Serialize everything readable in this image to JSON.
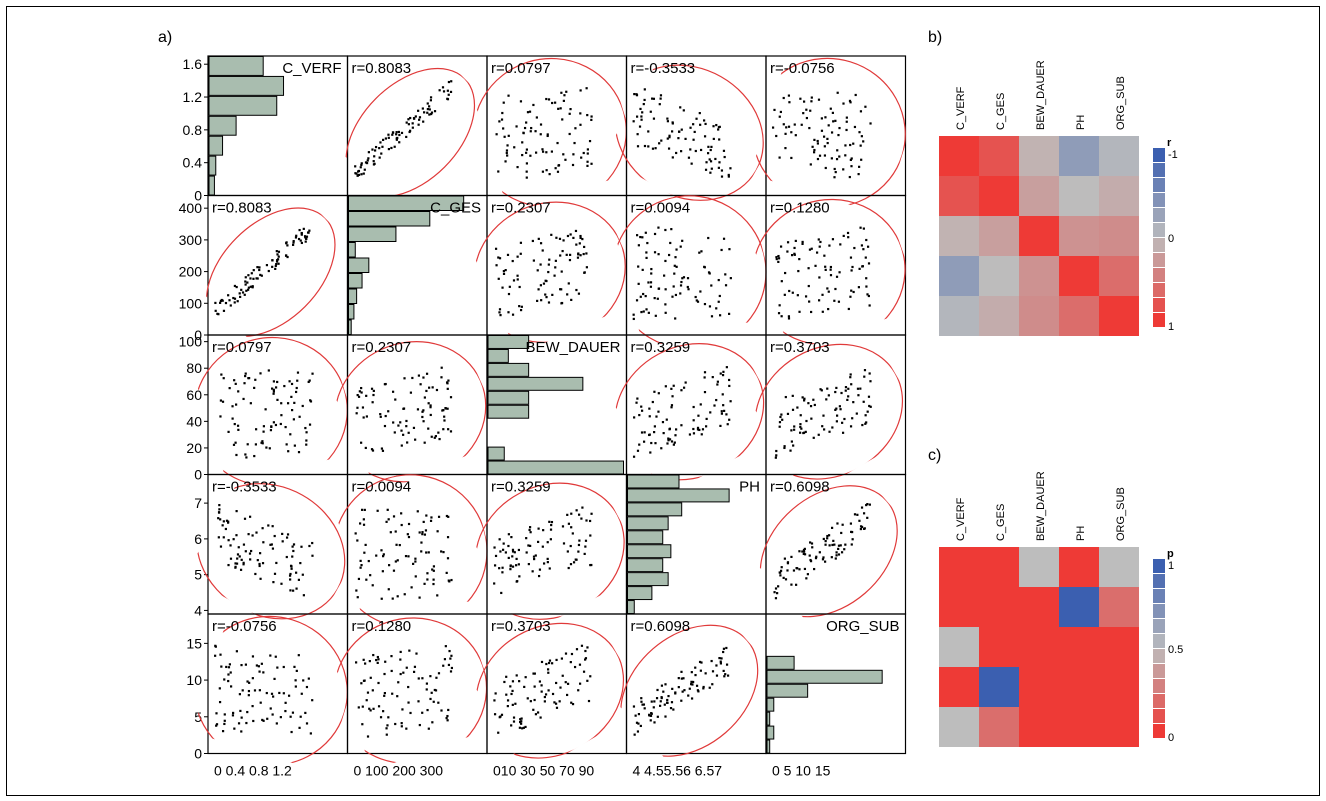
{
  "panel_labels": {
    "a": "a)",
    "b": "b)",
    "c": "c)"
  },
  "chart_data": [
    {
      "type": "scatter",
      "panel": "a)",
      "variables": [
        "C_VERF",
        "C_GES",
        "BEW_DAUER",
        "PH",
        "ORG_SUB"
      ],
      "correlation_labels": [
        [
          null,
          "r=0.8083",
          "r=0.0797",
          "r=-0.3533",
          "r=-0.0756"
        ],
        [
          "r=0.8083",
          null,
          "r=0.2307",
          "r=0.0094",
          "r=0.1280"
        ],
        [
          "r=0.0797",
          "r=0.2307",
          null,
          "r=0.3259",
          "r=0.3703"
        ],
        [
          "r=-0.3533",
          "r=0.0094",
          "r=0.3259",
          null,
          "r=0.6098"
        ],
        [
          "r=-0.0756",
          "r=0.1280",
          "r=0.3703",
          "r=0.6098",
          null
        ]
      ],
      "correlation_values": [
        [
          1,
          0.8083,
          0.0797,
          -0.3533,
          -0.0756
        ],
        [
          0.8083,
          1,
          0.2307,
          0.0094,
          0.128
        ],
        [
          0.0797,
          0.2307,
          1,
          0.3259,
          0.3703
        ],
        [
          -0.3533,
          0.0094,
          0.3259,
          1,
          0.6098
        ],
        [
          -0.0756,
          0.128,
          0.3703,
          0.6098,
          1
        ]
      ],
      "ranges": [
        [
          0,
          1.7
        ],
        [
          0,
          440
        ],
        [
          0,
          105
        ],
        [
          3.9,
          7.8
        ],
        [
          0,
          19
        ]
      ],
      "y_ticks": [
        [
          "0",
          "0.4",
          "0.8",
          "1.2",
          "1.6"
        ],
        [
          "0",
          "100",
          "200",
          "300",
          "400"
        ],
        [
          "0",
          "20",
          "40",
          "60",
          "80",
          "100"
        ],
        [
          "4",
          "5",
          "6",
          "7"
        ],
        [
          "0",
          "5",
          "10",
          "15"
        ]
      ],
      "x_ticks": [
        [
          "0",
          "0.4",
          "0.8",
          "1.2"
        ],
        [
          "0",
          "100",
          "200",
          "300"
        ],
        [
          "0",
          "10",
          "30",
          "50",
          "70",
          "90"
        ],
        [
          "4",
          "4.5",
          "5.5",
          "6",
          "6.5",
          "7"
        ],
        [
          "0",
          "5",
          "10",
          "15"
        ]
      ],
      "x_ticks_text": [
        "0 0.4 0.8 1.2",
        "0 100 200 300",
        "010 30 50 70 90",
        "4 4.55.56 6.57",
        "0 5 10 15"
      ],
      "histograms": [
        [
          0.04,
          0.05,
          0.1,
          0.2,
          0.5,
          0.55,
          0.4
        ],
        [
          0.02,
          0.04,
          0.06,
          0.1,
          0.15,
          0.05,
          0.35,
          0.6,
          0.85
        ],
        [
          1.0,
          0.12,
          0.0,
          0.0,
          0.3,
          0.3,
          0.7,
          0.3,
          0.15,
          0.3
        ],
        [
          0.05,
          0.18,
          0.3,
          0.26,
          0.32,
          0.26,
          0.3,
          0.4,
          0.75,
          0.38
        ],
        [
          0.02,
          0.05,
          0.02,
          0.05,
          0.3,
          0.85,
          0.2,
          0.0,
          0.0,
          0.0
        ]
      ]
    },
    {
      "type": "heatmap",
      "panel": "b)",
      "columns": [
        "C_VERF",
        "C_GES",
        "BEW_DAUER",
        "PH",
        "ORG_SUB"
      ],
      "values": [
        [
          1,
          0.8083,
          0.0797,
          -0.3533,
          -0.0756
        ],
        [
          0.8083,
          1,
          0.2307,
          0.0094,
          0.128
        ],
        [
          0.0797,
          0.2307,
          1,
          0.3259,
          0.3703
        ],
        [
          -0.3533,
          0.0094,
          0.3259,
          1,
          0.6098
        ],
        [
          -0.0756,
          0.128,
          0.3703,
          0.6098,
          1
        ]
      ],
      "colorbar": {
        "title": "r",
        "ticks": [
          "-1",
          "0",
          "1"
        ],
        "min_color": "#ee3a36",
        "mid_color": "#bdbdbd",
        "max_color": "#3b5fb0"
      }
    },
    {
      "type": "heatmap",
      "panel": "c)",
      "columns": [
        "C_VERF",
        "C_GES",
        "BEW_DAUER",
        "PH",
        "ORG_SUB"
      ],
      "values": [
        [
          0,
          0,
          0.5,
          0,
          0.5
        ],
        [
          0,
          0,
          0,
          1,
          0.2
        ],
        [
          0.5,
          0,
          0,
          0,
          0
        ],
        [
          0,
          1,
          0,
          0,
          0
        ],
        [
          0.5,
          0.2,
          0,
          0,
          0
        ]
      ],
      "colorbar": {
        "title": "p",
        "ticks": [
          "1",
          "0.5",
          "0"
        ],
        "min_color": "#ee3a36",
        "mid_color": "#bdbdbd",
        "max_color": "#3b5fb0"
      }
    }
  ]
}
